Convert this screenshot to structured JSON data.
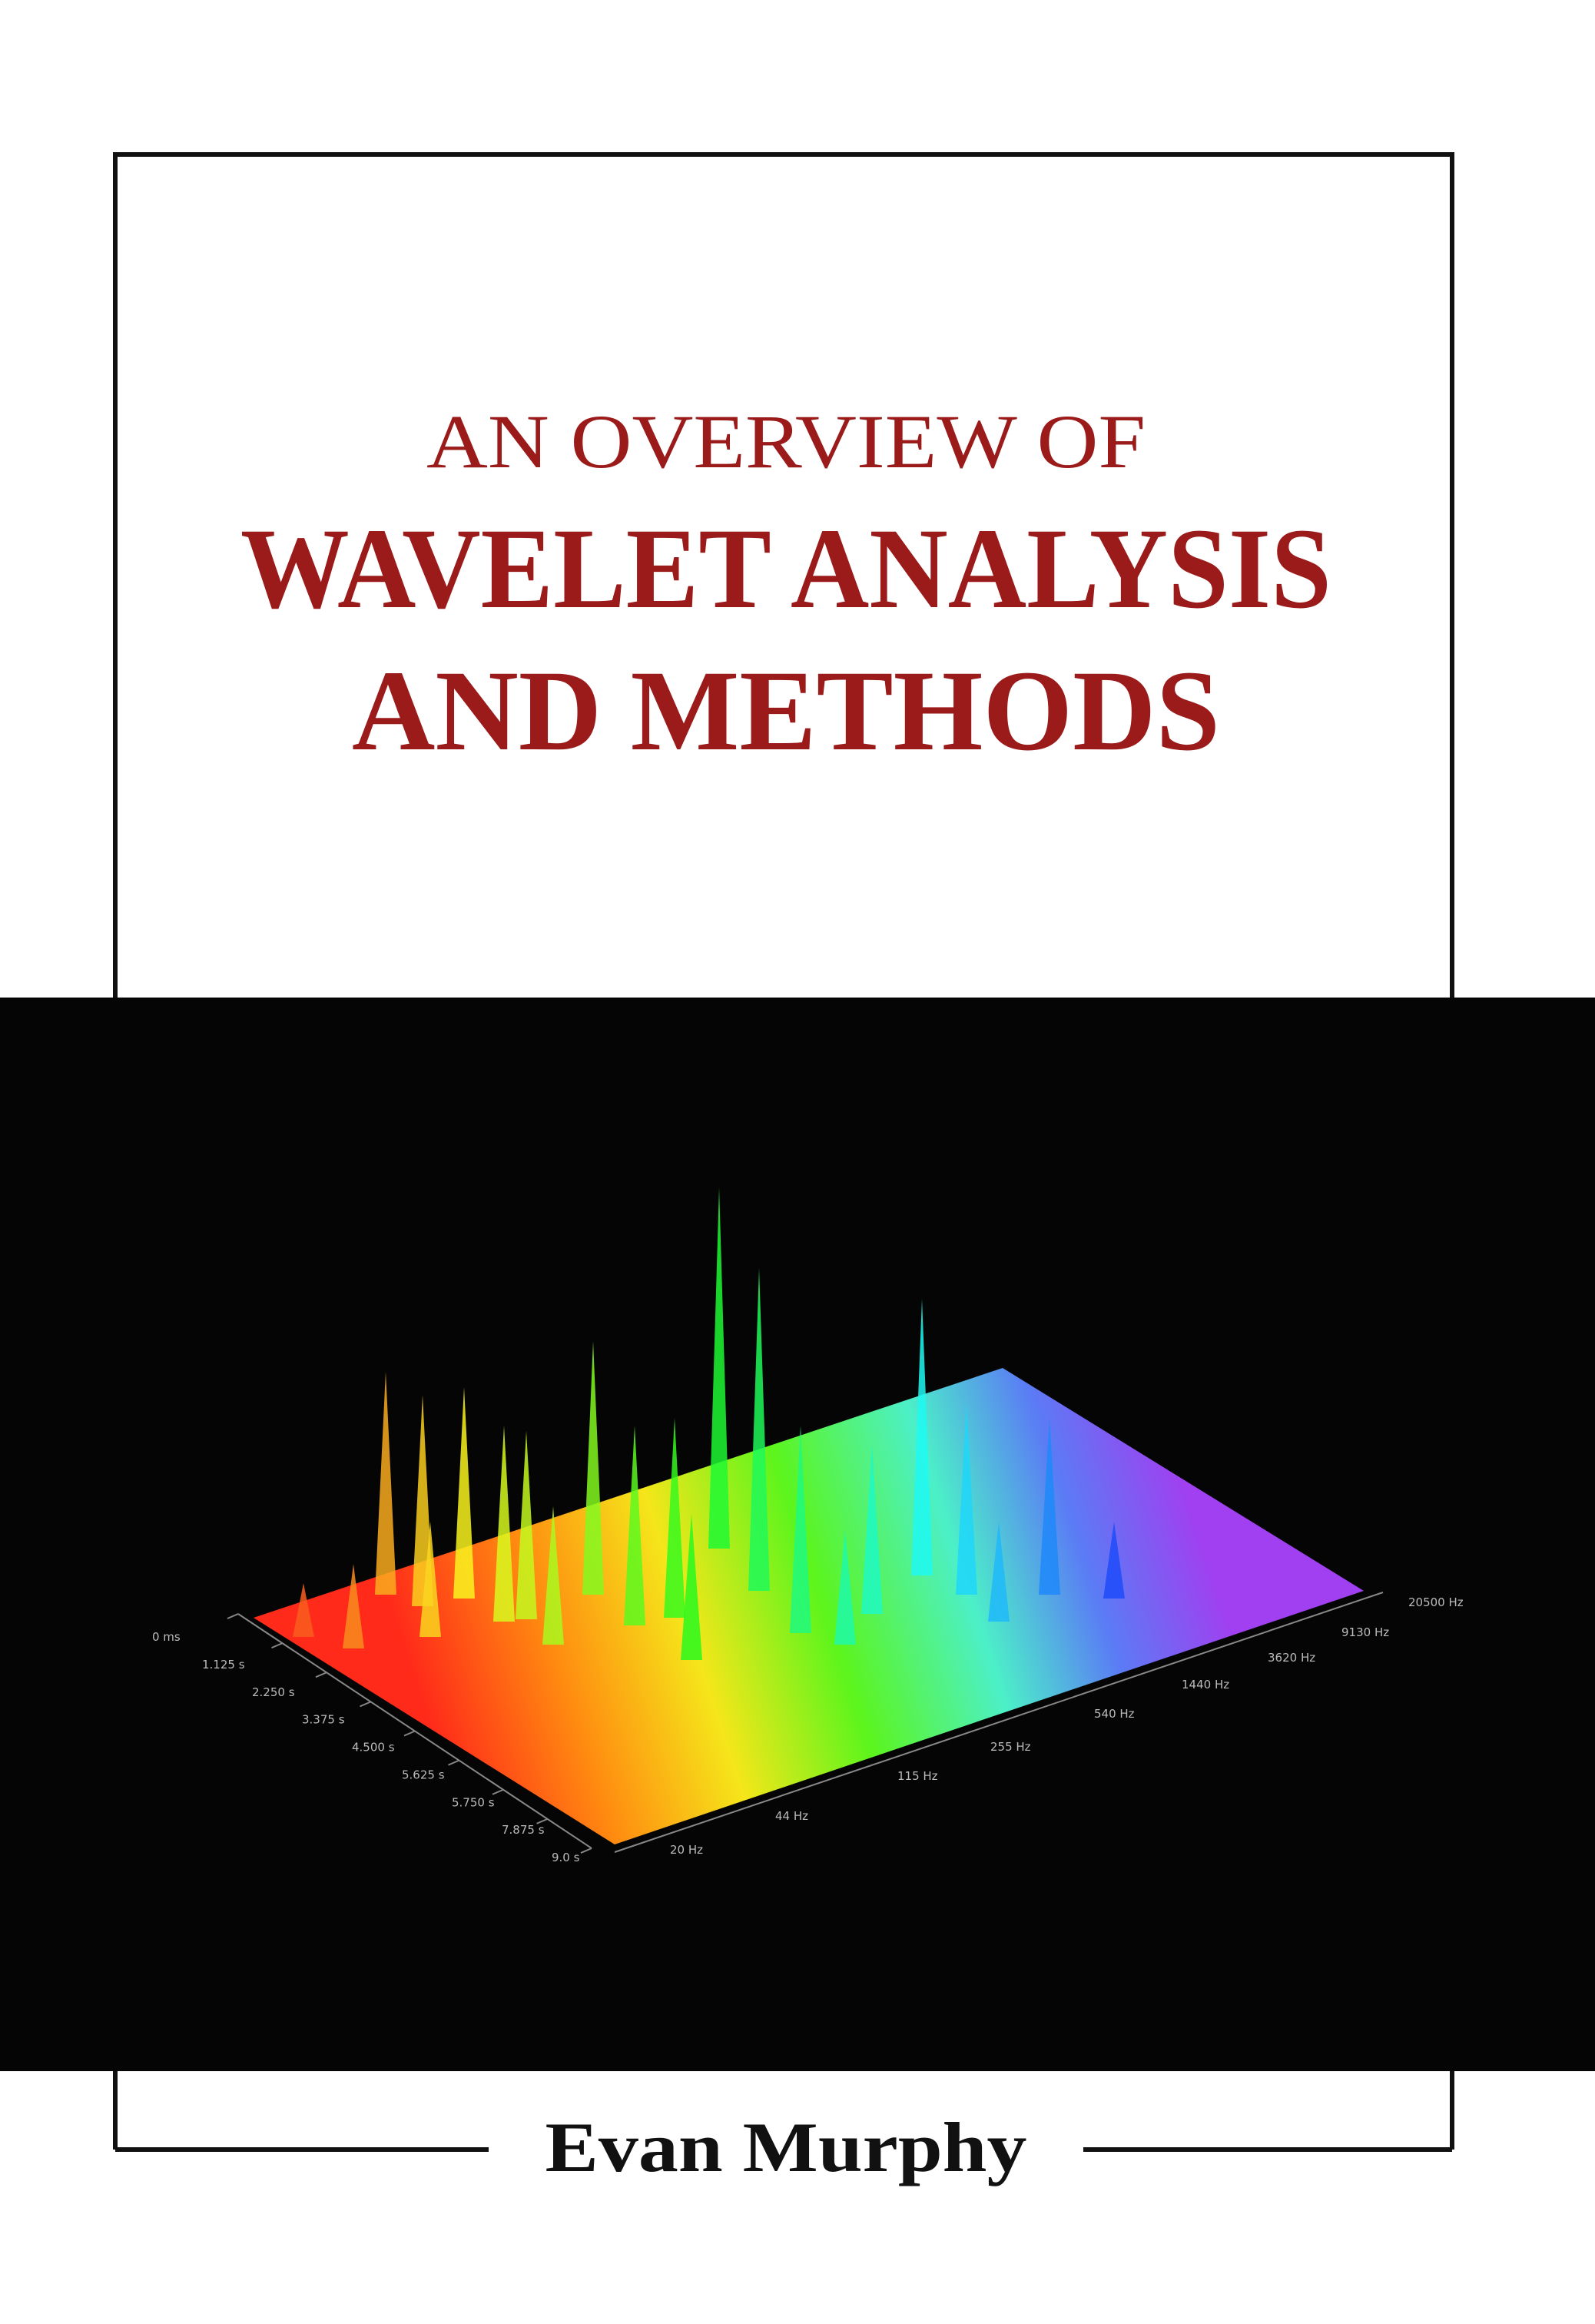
{
  "cover": {
    "title_line1": "AN OVERVIEW OF",
    "title_line2": "WAVELET ANALYSIS",
    "title_line3": "AND METHODS",
    "author": "Evan Murphy"
  },
  "plot": {
    "time_labels": [
      "0 ms",
      "1.125 s",
      "2.250 s",
      "3.375 s",
      "4.500 s",
      "5.625 s",
      "5.750 s",
      "7.875 s",
      "9.0 s"
    ],
    "freq_labels": [
      "20 Hz",
      "44 Hz",
      "115 Hz",
      "255 Hz",
      "540 Hz",
      "1440 Hz",
      "3620 Hz",
      "9130 Hz",
      "20500 Hz"
    ]
  }
}
